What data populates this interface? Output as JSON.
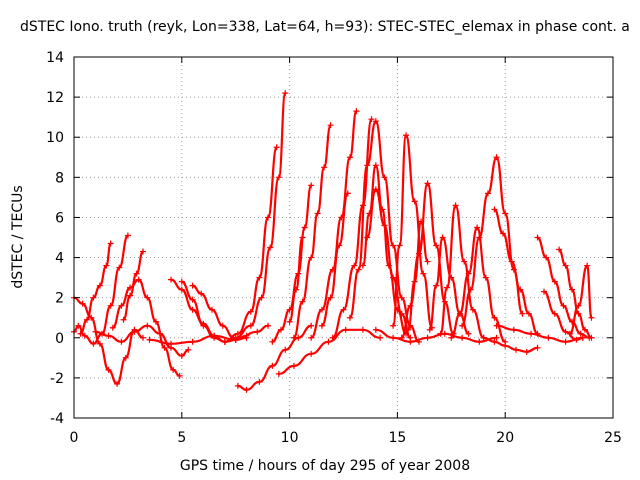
{
  "chart_data": {
    "type": "scatter",
    "title": "dSTEC Iono. truth (reyk, Lon=338, Lat=64, h=93): STEC-STEC_elemax in phase cont. a",
    "xlabel": "GPS time / hours of day 295 of year 2008",
    "ylabel": "dSTEC  / TECUs",
    "xlim": [
      0,
      25
    ],
    "ylim": [
      -4,
      14
    ],
    "xticks": [
      0,
      5,
      10,
      15,
      20,
      25
    ],
    "yticks": [
      -4,
      -2,
      0,
      2,
      4,
      6,
      8,
      10,
      12,
      14
    ],
    "grid": true,
    "marker": "+",
    "color": "#ff0000",
    "series": [
      {
        "x": [
          0.0,
          0.4,
          0.8,
          1.2,
          1.6,
          2.0,
          2.4,
          2.8,
          3.2
        ],
        "y": [
          2.0,
          1.7,
          1.0,
          -0.3,
          -1.6,
          -2.3,
          -1.0,
          0.4,
          0.0
        ]
      },
      {
        "x": [
          0.0,
          0.2,
          0.5,
          0.9,
          1.3,
          1.7,
          2.1,
          2.5
        ],
        "y": [
          0.3,
          0.6,
          0.1,
          -0.3,
          0.2,
          1.6,
          3.5,
          5.1
        ]
      },
      {
        "x": [
          0.3,
          0.6,
          0.9,
          1.2,
          1.5,
          1.7
        ],
        "y": [
          0.2,
          0.9,
          2.0,
          2.6,
          3.6,
          4.7
        ]
      },
      {
        "x": [
          1.8,
          2.2,
          2.6,
          3.0,
          3.4,
          3.8,
          4.2,
          4.6,
          4.9
        ],
        "y": [
          0.5,
          1.6,
          2.5,
          2.9,
          2.0,
          0.8,
          -0.5,
          -1.6,
          -1.9
        ]
      },
      {
        "x": [
          2.3,
          2.6,
          2.9,
          3.2
        ],
        "y": [
          0.9,
          2.1,
          3.2,
          4.3
        ]
      },
      {
        "x": [
          1.0,
          1.6,
          2.2,
          2.8,
          3.4,
          4.0,
          4.5,
          5.0,
          5.3
        ],
        "y": [
          0.3,
          0.1,
          -0.2,
          0.3,
          0.6,
          0.2,
          -0.5,
          -0.9,
          -0.6
        ]
      },
      {
        "x": [
          4.5,
          5.0,
          5.5,
          6.0,
          6.5,
          7.0,
          7.5,
          8.0
        ],
        "y": [
          2.9,
          2.4,
          1.4,
          0.7,
          0.1,
          -0.2,
          -0.1,
          0.1
        ]
      },
      {
        "x": [
          5.0,
          5.5,
          6.0,
          6.5,
          7.0,
          7.5,
          8.0
        ],
        "y": [
          2.8,
          1.9,
          0.6,
          0.0,
          -0.2,
          -0.1,
          0.0
        ]
      },
      {
        "x": [
          5.5,
          5.9,
          6.4,
          6.9,
          7.4
        ],
        "y": [
          2.6,
          2.2,
          1.4,
          0.6,
          0.0
        ]
      },
      {
        "x": [
          3.5,
          4.5,
          5.5,
          6.5,
          7.5,
          8.5,
          9.0
        ],
        "y": [
          -0.1,
          -0.3,
          -0.2,
          0.1,
          -0.1,
          0.3,
          0.6
        ]
      },
      {
        "x": [
          7.5,
          8.2,
          8.7,
          9.1,
          9.5,
          9.8
        ],
        "y": [
          0.0,
          0.6,
          2.0,
          4.5,
          8.0,
          12.2
        ]
      },
      {
        "x": [
          7.0,
          7.6,
          8.2,
          8.6,
          9.0,
          9.4
        ],
        "y": [
          -0.2,
          0.2,
          1.3,
          3.0,
          6.0,
          9.5
        ]
      },
      {
        "x": [
          7.6,
          8.0,
          8.6,
          9.2,
          9.8,
          10.4,
          11.0
        ],
        "y": [
          -2.4,
          -2.6,
          -2.2,
          -1.4,
          -0.6,
          0.0,
          0.6
        ]
      },
      {
        "x": [
          9.5,
          10.2,
          11.0,
          11.8,
          12.6,
          13.4,
          14.2
        ],
        "y": [
          -1.8,
          -1.4,
          -0.8,
          -0.2,
          0.4,
          0.4,
          0.0
        ]
      },
      {
        "x": [
          10.2,
          10.6,
          11.0,
          11.3,
          11.6,
          11.9
        ],
        "y": [
          0.0,
          1.8,
          4.0,
          6.2,
          8.5,
          10.6
        ]
      },
      {
        "x": [
          9.2,
          9.6,
          10.0,
          10.4,
          10.7,
          11.0
        ],
        "y": [
          -0.2,
          0.4,
          1.4,
          3.2,
          5.5,
          7.6
        ]
      },
      {
        "x": [
          10.0,
          10.3,
          10.6
        ],
        "y": [
          0.8,
          2.4,
          5.0
        ]
      },
      {
        "x": [
          11.0,
          11.5,
          12.0,
          12.4,
          12.8,
          13.1
        ],
        "y": [
          0.0,
          1.4,
          3.4,
          6.0,
          9.0,
          11.3
        ]
      },
      {
        "x": [
          11.5,
          11.9,
          12.3,
          12.7
        ],
        "y": [
          0.6,
          2.0,
          4.6,
          7.2
        ]
      },
      {
        "x": [
          12.0,
          12.5,
          13.0,
          13.4,
          13.8
        ],
        "y": [
          0.0,
          1.4,
          3.6,
          6.6,
          10.9
        ]
      },
      {
        "x": [
          12.8,
          13.2,
          13.6,
          14.0,
          14.4,
          14.8,
          15.2,
          15.6,
          16.0
        ],
        "y": [
          1.0,
          3.4,
          8.6,
          10.8,
          8.0,
          4.6,
          2.0,
          0.6,
          -0.2
        ]
      },
      {
        "x": [
          13.4,
          13.7,
          14.0,
          14.3,
          14.6,
          15.0,
          15.4
        ],
        "y": [
          3.6,
          6.2,
          8.6,
          6.4,
          3.6,
          1.4,
          0.2
        ]
      },
      {
        "x": [
          13.6,
          14.0,
          14.4,
          14.8,
          15.2,
          15.6
        ],
        "y": [
          5.0,
          7.4,
          5.6,
          3.0,
          1.2,
          0.0
        ]
      },
      {
        "x": [
          14.8,
          15.1,
          15.4,
          15.8,
          16.2,
          16.6
        ],
        "y": [
          0.6,
          4.6,
          10.1,
          6.8,
          3.2,
          0.5
        ]
      },
      {
        "x": [
          15.2,
          15.6,
          16.0,
          16.4,
          16.8,
          17.2,
          17.6
        ],
        "y": [
          0.0,
          1.6,
          4.2,
          7.7,
          4.6,
          1.8,
          0.2
        ]
      },
      {
        "x": [
          15.5,
          15.8,
          16.1,
          16.4
        ],
        "y": [
          0.4,
          2.8,
          5.8,
          3.8
        ]
      },
      {
        "x": [
          16.5,
          16.8,
          17.1,
          17.5,
          17.9,
          18.3
        ],
        "y": [
          0.4,
          2.6,
          5.0,
          3.0,
          1.2,
          0.2
        ]
      },
      {
        "x": [
          17.0,
          17.3,
          17.7,
          18.1,
          18.5,
          19.0
        ],
        "y": [
          0.2,
          2.5,
          6.6,
          3.8,
          1.4,
          0.0
        ]
      },
      {
        "x": [
          17.5,
          17.9,
          18.3,
          18.7,
          19.1,
          19.5,
          20.0
        ],
        "y": [
          0.0,
          1.2,
          3.2,
          5.5,
          3.0,
          1.0,
          -0.2
        ]
      },
      {
        "x": [
          18.0,
          18.4,
          18.8,
          19.2,
          19.6,
          20.0,
          20.4,
          20.8
        ],
        "y": [
          0.6,
          2.4,
          5.0,
          7.2,
          9.0,
          6.2,
          3.4,
          1.2
        ]
      },
      {
        "x": [
          19.5,
          19.9,
          20.3,
          20.7,
          21.1,
          21.5
        ],
        "y": [
          6.4,
          5.2,
          3.8,
          2.4,
          1.2,
          0.2
        ]
      },
      {
        "x": [
          19.0,
          19.5,
          20.0,
          20.5,
          21.0,
          21.5
        ],
        "y": [
          0.0,
          -0.2,
          -0.4,
          -0.6,
          -0.7,
          -0.5
        ]
      },
      {
        "x": [
          21.5,
          21.9,
          22.3,
          22.7,
          23.1,
          23.5,
          23.9
        ],
        "y": [
          5.0,
          4.0,
          2.8,
          1.6,
          0.8,
          0.2,
          0.0
        ]
      },
      {
        "x": [
          22.5,
          22.8,
          23.1,
          23.4,
          23.7,
          24.0
        ],
        "y": [
          4.4,
          3.6,
          2.4,
          1.2,
          0.4,
          0.0
        ]
      },
      {
        "x": [
          21.8,
          22.3,
          22.8,
          23.3,
          23.6
        ],
        "y": [
          2.3,
          1.2,
          0.3,
          -0.1,
          0.0
        ]
      },
      {
        "x": [
          23.0,
          23.4,
          23.8,
          24.0
        ],
        "y": [
          0.2,
          1.6,
          3.6,
          1.0
        ]
      },
      {
        "x": [
          19.6,
          20.4,
          21.2,
          22.0,
          22.8,
          23.6
        ],
        "y": [
          0.6,
          0.4,
          0.2,
          0.0,
          -0.2,
          0.0
        ]
      },
      {
        "x": [
          14.0,
          14.8,
          15.6,
          16.4,
          17.2,
          18.0,
          18.8,
          19.6
        ],
        "y": [
          0.4,
          0.0,
          -0.2,
          0.0,
          0.2,
          0.0,
          -0.2,
          0.0
        ]
      }
    ]
  }
}
